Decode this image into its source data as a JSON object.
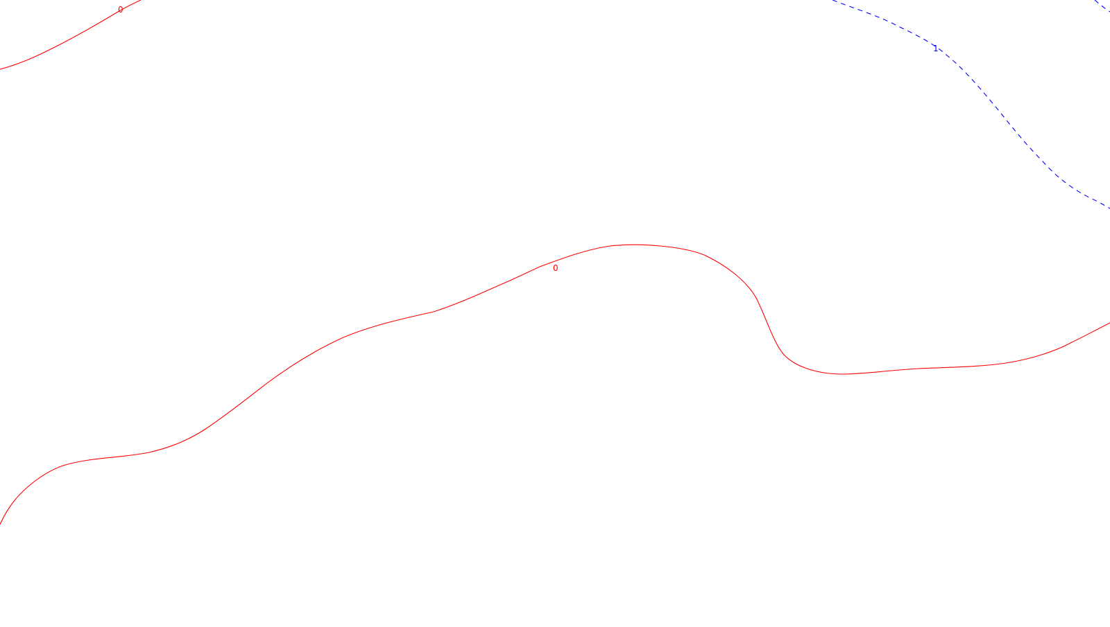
{
  "map": {
    "background_color": "#ffffff",
    "contours": [
      {
        "id": "contour-0-upper-left",
        "level": 0,
        "label": "0",
        "color": "#ff0000",
        "style": "solid"
      },
      {
        "id": "contour-0-main",
        "level": 0,
        "label": "0",
        "color": "#ff0000",
        "style": "solid"
      },
      {
        "id": "contour-1-upper-right",
        "level": 1,
        "label": "1",
        "color": "#0000ff",
        "style": "dashed"
      }
    ]
  }
}
